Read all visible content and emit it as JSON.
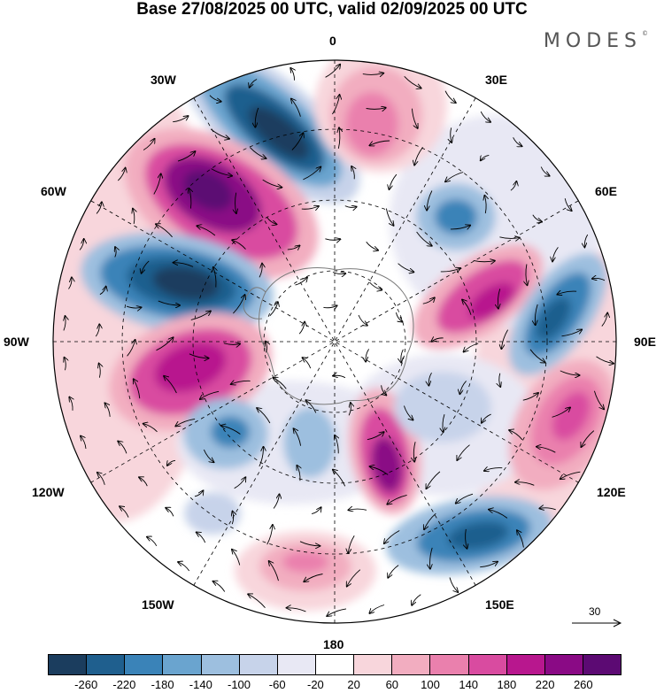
{
  "title": "Base 27/08/2025 00 UTC, valid 02/09/2025 00 UTC",
  "brand": "MODES",
  "brand_mark": "©",
  "longitude_labels": {
    "lon_0": "0",
    "lon_30e": "30E",
    "lon_60e": "60E",
    "lon_90e": "90E",
    "lon_120e": "120E",
    "lon_150e": "150E",
    "lon_180": "180",
    "lon_150w": "150W",
    "lon_120w": "120W",
    "lon_90w": "90W",
    "lon_60w": "60W",
    "lon_30w": "30W"
  },
  "reference_vector_label": "30",
  "colorbar": {
    "colors": [
      "#1b3d5e",
      "#1f5f8e",
      "#3a83b8",
      "#6aa4cf",
      "#9dbfdf",
      "#c7d3ea",
      "#e8e8f4",
      "#ffffff",
      "#f8d6dc",
      "#f2adc0",
      "#ea80ad",
      "#d94ba0",
      "#b8178e",
      "#8a0a85",
      "#5c0a73"
    ],
    "tick_labels": [
      "-260",
      "-220",
      "-180",
      "-140",
      "-100",
      "-60",
      "-20",
      "20",
      "60",
      "100",
      "140",
      "180",
      "220",
      "260"
    ]
  },
  "legend_colors": {
    "coast": "#7a7a7a",
    "arrow": "#000000"
  }
}
